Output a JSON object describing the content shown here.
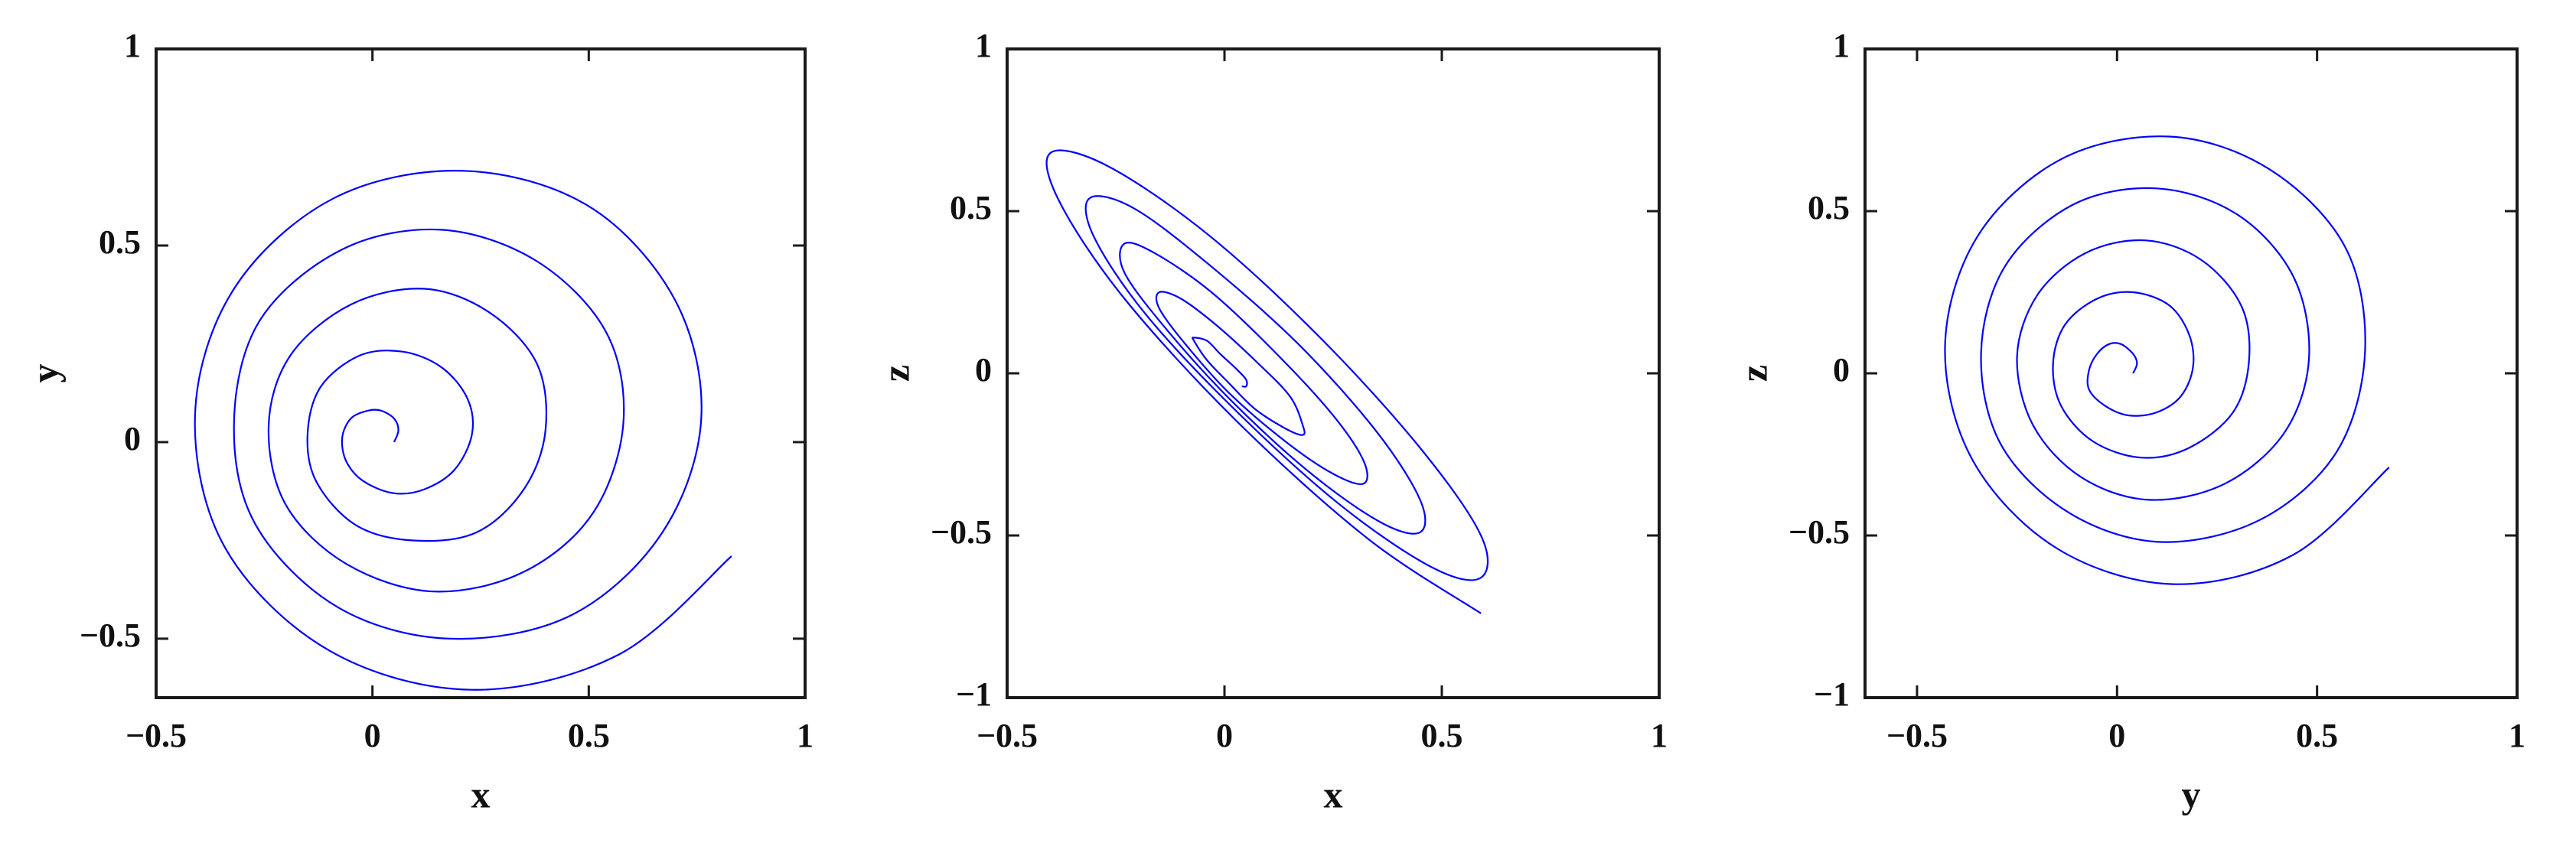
{
  "chart_data": [
    {
      "type": "line",
      "x_label": "x",
      "y_label": "y",
      "xlim": [
        -0.5,
        1
      ],
      "ylim": [
        -0.65,
        1
      ],
      "xticks": [
        {
          "value": -0.5,
          "label": "−0.5"
        },
        0,
        0.5,
        1
      ],
      "yticks": [
        {
          "value": -0.5,
          "label": "−0.5"
        },
        0,
        0.5,
        1
      ],
      "series": [
        {
          "color": "#0000ff",
          "x": [
            0.05,
            0.06,
            0.05,
            0.02,
            -0.01,
            -0.05,
            -0.07,
            -0.06,
            -0.02,
            0.05,
            0.12,
            0.19,
            0.23,
            0.22,
            0.16,
            0.07,
            -0.03,
            -0.12,
            -0.15,
            -0.13,
            -0.04,
            0.09,
            0.24,
            0.35,
            0.4,
            0.38,
            0.27,
            0.12,
            -0.05,
            -0.19,
            -0.24,
            -0.2,
            -0.06,
            0.14,
            0.35,
            0.51,
            0.58,
            0.54,
            0.38,
            0.16,
            -0.07,
            -0.26,
            -0.32,
            -0.27,
            -0.08,
            0.18,
            0.46,
            0.67,
            0.76,
            0.7,
            0.5,
            0.21,
            -0.09,
            -0.32,
            -0.41,
            -0.34,
            -0.1,
            0.23,
            0.57,
            0.83
          ],
          "values": [
            0.0,
            0.03,
            0.06,
            0.08,
            0.08,
            0.06,
            0.01,
            -0.05,
            -0.1,
            -0.13,
            -0.12,
            -0.07,
            0.02,
            0.11,
            0.19,
            0.23,
            0.22,
            0.14,
            0.02,
            -0.1,
            -0.21,
            -0.25,
            -0.23,
            -0.12,
            0.03,
            0.2,
            0.33,
            0.39,
            0.35,
            0.22,
            0.04,
            -0.16,
            -0.31,
            -0.38,
            -0.33,
            -0.18,
            0.05,
            0.28,
            0.46,
            0.54,
            0.49,
            0.31,
            0.05,
            -0.21,
            -0.42,
            -0.5,
            -0.44,
            -0.23,
            0.06,
            0.36,
            0.6,
            0.69,
            0.62,
            0.39,
            0.07,
            -0.27,
            -0.53,
            -0.63,
            -0.54,
            -0.29
          ]
        }
      ]
    },
    {
      "type": "line",
      "x_label": "x",
      "y_label": "z",
      "xlim": [
        -0.5,
        1
      ],
      "ylim": [
        -1,
        1
      ],
      "xticks": [
        {
          "value": -0.5,
          "label": "−0.5"
        },
        0,
        0.5,
        1
      ],
      "yticks": [
        {
          "value": -1,
          "label": "−1"
        },
        {
          "value": -0.5,
          "label": "−0.5"
        },
        0,
        0.5,
        1
      ],
      "series": [
        {
          "color": "#0000ff",
          "x": [
            0.04,
            0.05,
            0.05,
            0.03,
            -0.01,
            -0.04,
            -0.07,
            -0.07,
            -0.04,
            0.01,
            0.07,
            0.14,
            0.18,
            0.18,
            0.15,
            0.07,
            -0.02,
            -0.1,
            -0.15,
            -0.15,
            -0.09,
            0.01,
            0.14,
            0.25,
            0.32,
            0.32,
            0.25,
            0.12,
            -0.03,
            -0.16,
            -0.23,
            -0.23,
            -0.13,
            0.02,
            0.2,
            0.36,
            0.45,
            0.45,
            0.35,
            0.17,
            -0.04,
            -0.21,
            -0.31,
            -0.3,
            -0.18,
            0.03,
            0.27,
            0.48,
            0.59,
            0.59,
            0.45,
            0.22,
            -0.04,
            -0.27,
            -0.4,
            -0.38,
            -0.23,
            0.03,
            0.33,
            0.59
          ],
          "values": [
            -0.04,
            -0.04,
            -0.02,
            0.01,
            0.06,
            0.1,
            0.11,
            0.1,
            0.04,
            -0.03,
            -0.11,
            -0.17,
            -0.19,
            -0.16,
            -0.07,
            0.04,
            0.15,
            0.23,
            0.25,
            0.2,
            0.09,
            -0.06,
            -0.21,
            -0.31,
            -0.34,
            -0.27,
            -0.13,
            0.06,
            0.25,
            0.37,
            0.4,
            0.31,
            0.13,
            -0.09,
            -0.31,
            -0.46,
            -0.49,
            -0.39,
            -0.18,
            0.09,
            0.34,
            0.51,
            0.54,
            0.42,
            0.18,
            -0.12,
            -0.41,
            -0.6,
            -0.63,
            -0.5,
            -0.23,
            0.11,
            0.43,
            0.64,
            0.68,
            0.53,
            0.23,
            -0.15,
            -0.51,
            -0.74
          ]
        }
      ]
    },
    {
      "type": "line",
      "x_label": "y",
      "y_label": "z",
      "xlim": [
        -0.63,
        1
      ],
      "ylim": [
        -1,
        1
      ],
      "xticks": [
        {
          "value": -0.5,
          "label": "−0.5"
        },
        0,
        0.5,
        1
      ],
      "yticks": [
        {
          "value": -1,
          "label": "−1"
        },
        {
          "value": -0.5,
          "label": "−0.5"
        },
        0,
        0.5,
        1
      ],
      "series": [
        {
          "color": "#0000ff",
          "x": [
            0.04,
            0.05,
            0.04,
            0.01,
            -0.02,
            -0.05,
            -0.07,
            -0.07,
            -0.03,
            0.03,
            0.1,
            0.16,
            0.19,
            0.18,
            0.13,
            0.04,
            -0.05,
            -0.13,
            -0.16,
            -0.14,
            -0.06,
            0.06,
            0.18,
            0.29,
            0.33,
            0.31,
            0.21,
            0.07,
            -0.08,
            -0.2,
            -0.25,
            -0.21,
            -0.09,
            0.08,
            0.27,
            0.42,
            0.48,
            0.44,
            0.3,
            0.1,
            -0.11,
            -0.28,
            -0.34,
            -0.29,
            -0.12,
            0.11,
            0.36,
            0.55,
            0.62,
            0.57,
            0.38,
            0.13,
            -0.14,
            -0.35,
            -0.43,
            -0.36,
            -0.15,
            0.14,
            0.44,
            0.68
          ],
          "values": [
            0.0,
            0.03,
            0.06,
            0.09,
            0.09,
            0.06,
            0.01,
            -0.05,
            -0.1,
            -0.13,
            -0.12,
            -0.07,
            0.02,
            0.12,
            0.21,
            0.25,
            0.23,
            0.15,
            0.03,
            -0.1,
            -0.21,
            -0.26,
            -0.23,
            -0.12,
            0.04,
            0.21,
            0.35,
            0.41,
            0.37,
            0.24,
            0.05,
            -0.16,
            -0.32,
            -0.39,
            -0.34,
            -0.18,
            0.05,
            0.3,
            0.49,
            0.57,
            0.52,
            0.33,
            0.06,
            -0.22,
            -0.43,
            -0.52,
            -0.45,
            -0.24,
            0.07,
            0.39,
            0.63,
            0.73,
            0.66,
            0.42,
            0.08,
            -0.27,
            -0.54,
            -0.65,
            -0.56,
            -0.29
          ]
        }
      ]
    }
  ]
}
